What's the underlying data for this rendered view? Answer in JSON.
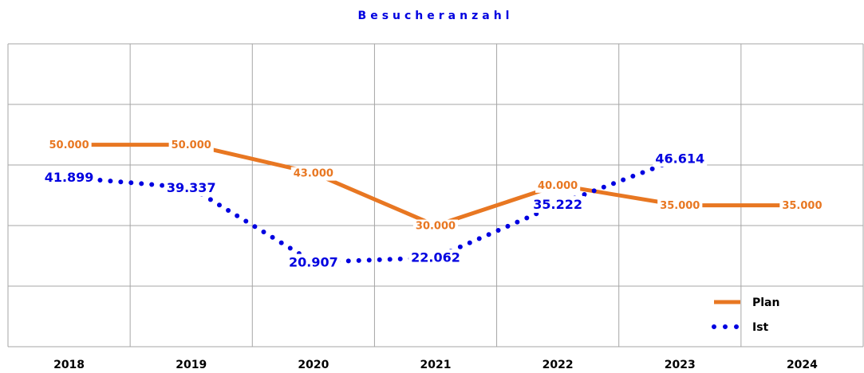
{
  "chart_data": {
    "type": "line",
    "title": "Besucheranzahl",
    "categories": [
      "2018",
      "2019",
      "2020",
      "2021",
      "2022",
      "2023",
      "2024"
    ],
    "series": [
      {
        "name": "Plan",
        "color": "#e87722",
        "style": "solid",
        "values": [
          50000,
          50000,
          43000,
          30000,
          40000,
          35000,
          35000
        ],
        "value_labels": [
          "50.000",
          "50.000",
          "43.000",
          "30.000",
          "40.000",
          "35.000",
          "35.000"
        ]
      },
      {
        "name": "Ist",
        "color": "#0000e0",
        "style": "dotted",
        "values": [
          41899,
          39337,
          20907,
          22062,
          35222,
          46614,
          null
        ],
        "value_labels": [
          "41.899",
          "39.337",
          "20.907",
          "22.062",
          "35.222",
          "46.614",
          null
        ]
      }
    ],
    "ylim": [
      0,
      75000
    ],
    "yticks": [
      0,
      15000,
      30000,
      45000,
      60000,
      75000
    ],
    "grid": true,
    "legend": "lower right"
  }
}
